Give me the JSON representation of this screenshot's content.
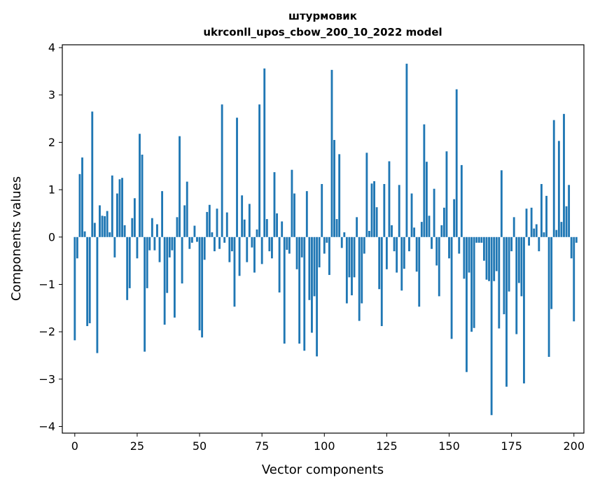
{
  "chart_data": {
    "type": "bar",
    "title_lines": [
      "штурмовик",
      "ukrconll_upos_cbow_200_10_2022 model"
    ],
    "xlabel": "Vector components",
    "ylabel": "Components values",
    "xlim": [
      -5,
      204
    ],
    "ylim": [
      -4.14,
      4.06
    ],
    "xticks": [
      0,
      25,
      50,
      75,
      100,
      125,
      150,
      175,
      200
    ],
    "yticks": [
      -4,
      -3,
      -2,
      -1,
      0,
      1,
      2,
      3,
      4
    ],
    "ytick_labels": [
      "−4",
      "−3",
      "−2",
      "−1",
      "0",
      "1",
      "2",
      "3",
      "4"
    ],
    "bar_color": "#1f77b4",
    "values": [
      -2.18,
      -0.45,
      1.33,
      1.68,
      0.12,
      -1.88,
      -1.82,
      2.65,
      0.3,
      -2.45,
      0.67,
      0.45,
      0.44,
      0.55,
      0.1,
      1.3,
      -0.43,
      0.92,
      1.22,
      1.25,
      0.25,
      -1.33,
      -1.08,
      0.4,
      0.82,
      -0.45,
      2.18,
      1.74,
      -2.42,
      -1.08,
      -0.28,
      0.4,
      -0.28,
      0.27,
      -0.53,
      0.97,
      -1.85,
      -1.18,
      -0.43,
      -0.28,
      -1.7,
      0.42,
      2.13,
      -0.98,
      0.67,
      1.17,
      -0.25,
      -0.12,
      0.24,
      -0.1,
      -1.97,
      -2.12,
      -0.48,
      0.53,
      0.68,
      0.1,
      -0.3,
      0.6,
      -0.25,
      2.8,
      -0.12,
      0.52,
      -0.53,
      -0.3,
      -1.47,
      2.52,
      -0.82,
      0.88,
      0.37,
      -0.53,
      0.7,
      -0.22,
      -0.75,
      0.16,
      2.8,
      -0.57,
      3.56,
      0.38,
      -0.3,
      -0.45,
      1.37,
      0.5,
      -1.17,
      0.33,
      -2.25,
      -0.27,
      -0.35,
      1.42,
      0.92,
      -0.68,
      -2.25,
      -0.43,
      -2.4,
      0.97,
      -1.33,
      -2.02,
      -1.25,
      -2.52,
      -0.64,
      1.12,
      -0.35,
      -0.12,
      -0.8,
      3.53,
      2.05,
      0.38,
      1.75,
      -0.23,
      0.1,
      -1.4,
      -0.85,
      -1.23,
      -0.85,
      0.42,
      -1.77,
      -1.4,
      -0.35,
      1.78,
      0.13,
      1.13,
      1.18,
      0.63,
      -1.1,
      -1.88,
      1.12,
      -0.68,
      1.6,
      0.25,
      -0.3,
      -0.75,
      1.1,
      -1.13,
      -0.67,
      3.66,
      -0.3,
      0.92,
      0.2,
      -0.73,
      -1.47,
      0.32,
      2.38,
      1.59,
      0.45,
      -0.25,
      1.02,
      -0.6,
      -1.25,
      0.25,
      0.62,
      1.81,
      -0.45,
      -2.15,
      0.8,
      3.12,
      -0.35,
      1.52,
      -0.88,
      -2.85,
      -0.75,
      -2.0,
      -1.92,
      -0.12,
      -0.12,
      -0.12,
      -0.5,
      -0.9,
      -0.93,
      -3.76,
      -0.93,
      -0.72,
      -1.93,
      1.41,
      -1.63,
      -3.16,
      -1.15,
      -0.3,
      0.42,
      -2.05,
      -0.97,
      -1.25,
      -3.09,
      0.6,
      -0.18,
      0.62,
      0.18,
      0.27,
      -0.3,
      1.12,
      0.1,
      0.87,
      -2.53,
      -1.52,
      2.47,
      0.15,
      2.03,
      0.32,
      2.6,
      0.65,
      1.1,
      -0.45,
      -1.78,
      -0.12
    ]
  }
}
